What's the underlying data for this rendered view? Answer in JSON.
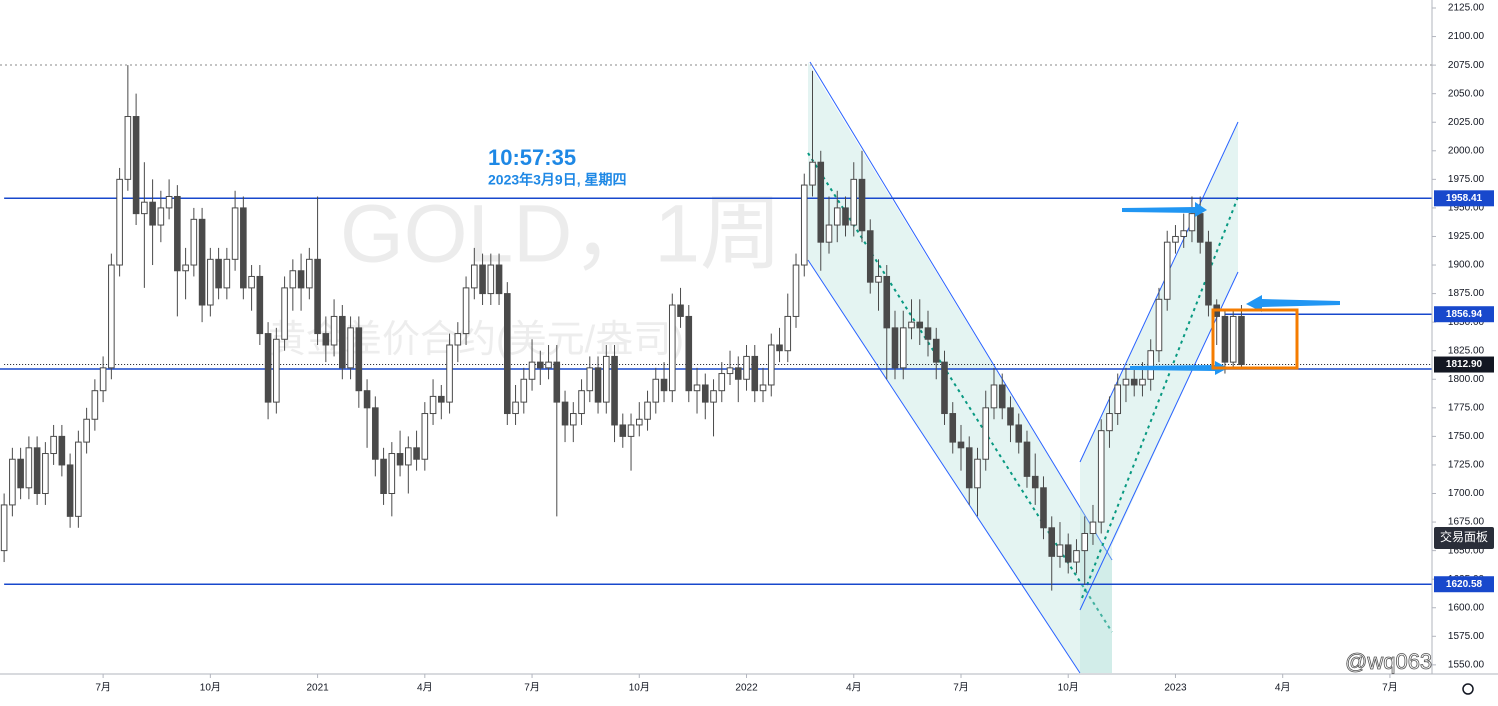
{
  "chart_data": {
    "type": "candlestick",
    "symbol": "GOLD，1周",
    "description": "黄金差价合约(美元/盎司)",
    "clock": "10:57:35",
    "date_line": "2023年3月9日, 星期四",
    "panel_button": "交易面板",
    "watermark": "@wq063",
    "up_color": "#ffffff",
    "down_color": "#4a4a4a",
    "wick_color": "#4a4a4a",
    "open": [
      1650,
      1690,
      1730,
      1705,
      1740,
      1700,
      1735,
      1750,
      1725,
      1680,
      1745,
      1765,
      1790,
      1810,
      1900,
      1975,
      2030,
      1945,
      1955,
      1935,
      1950,
      1960,
      1895,
      1900,
      1940,
      1865,
      1905,
      1880,
      1905,
      1950,
      1880,
      1890,
      1840,
      1780,
      1835,
      1880,
      1895,
      1880,
      1905,
      1840,
      1830,
      1855,
      1810,
      1845,
      1790,
      1775,
      1730,
      1700,
      1735,
      1725,
      1740,
      1730,
      1770,
      1785,
      1780,
      1830,
      1840,
      1880,
      1900,
      1875,
      1900,
      1875,
      1770,
      1780,
      1800,
      1815,
      1810,
      1815,
      1780,
      1760,
      1770,
      1790,
      1810,
      1780,
      1820,
      1760,
      1750,
      1760,
      1765,
      1780,
      1800,
      1790,
      1865,
      1855,
      1790,
      1795,
      1780,
      1790,
      1805,
      1810,
      1800,
      1820,
      1790,
      1795,
      1830,
      1825,
      1855,
      1900,
      1970,
      1990,
      1920,
      1935,
      1950,
      1935,
      1975,
      1930,
      1885,
      1890,
      1845,
      1810,
      1845,
      1850,
      1845,
      1835,
      1815,
      1770,
      1745,
      1740,
      1705,
      1730,
      1775,
      1795,
      1775,
      1760,
      1745,
      1715,
      1705,
      1670,
      1645,
      1655,
      1640,
      1650,
      1665,
      1675,
      1755,
      1770,
      1795,
      1800,
      1795,
      1800,
      1825,
      1870,
      1920,
      1925,
      1930,
      1945,
      1920,
      1865,
      1855,
      1815,
      1855
    ],
    "high": [
      1700,
      1740,
      1740,
      1750,
      1750,
      1745,
      1760,
      1760,
      1735,
      1755,
      1775,
      1800,
      1820,
      1910,
      1985,
      2075,
      2050,
      1990,
      1975,
      1965,
      1975,
      1970,
      1915,
      1950,
      1950,
      1915,
      1915,
      1915,
      1965,
      1960,
      1900,
      1900,
      1850,
      1845,
      1890,
      1905,
      1910,
      1915,
      1960,
      1855,
      1870,
      1865,
      1855,
      1855,
      1800,
      1785,
      1740,
      1745,
      1755,
      1750,
      1755,
      1780,
      1800,
      1795,
      1840,
      1850,
      1890,
      1915,
      1910,
      1910,
      1910,
      1885,
      1795,
      1810,
      1835,
      1825,
      1830,
      1830,
      1790,
      1780,
      1800,
      1820,
      1820,
      1830,
      1830,
      1770,
      1770,
      1780,
      1790,
      1810,
      1815,
      1875,
      1880,
      1865,
      1810,
      1805,
      1800,
      1815,
      1825,
      1820,
      1830,
      1830,
      1810,
      1840,
      1845,
      1875,
      1910,
      1980,
      2070,
      2000,
      1960,
      1965,
      1960,
      1990,
      2000,
      1940,
      1905,
      1900,
      1860,
      1860,
      1870,
      1870,
      1860,
      1845,
      1825,
      1780,
      1760,
      1750,
      1740,
      1790,
      1810,
      1805,
      1785,
      1770,
      1755,
      1735,
      1715,
      1680,
      1675,
      1665,
      1660,
      1680,
      1690,
      1765,
      1785,
      1805,
      1810,
      1810,
      1815,
      1835,
      1880,
      1930,
      1935,
      1945,
      1960,
      1960,
      1930,
      1870,
      1860,
      1860,
      1865
    ],
    "low": [
      1640,
      1680,
      1695,
      1695,
      1690,
      1690,
      1725,
      1715,
      1670,
      1670,
      1735,
      1755,
      1780,
      1800,
      1890,
      1965,
      1935,
      1880,
      1900,
      1920,
      1940,
      1855,
      1870,
      1890,
      1850,
      1855,
      1870,
      1870,
      1895,
      1870,
      1860,
      1830,
      1765,
      1770,
      1825,
      1860,
      1860,
      1870,
      1830,
      1815,
      1820,
      1800,
      1800,
      1775,
      1740,
      1715,
      1690,
      1680,
      1715,
      1700,
      1720,
      1720,
      1760,
      1765,
      1770,
      1815,
      1830,
      1870,
      1865,
      1865,
      1865,
      1760,
      1760,
      1770,
      1790,
      1795,
      1800,
      1680,
      1745,
      1745,
      1760,
      1780,
      1770,
      1770,
      1745,
      1740,
      1720,
      1750,
      1755,
      1770,
      1780,
      1780,
      1845,
      1780,
      1770,
      1765,
      1750,
      1780,
      1795,
      1780,
      1790,
      1780,
      1780,
      1785,
      1815,
      1815,
      1845,
      1890,
      1960,
      1895,
      1910,
      1920,
      1925,
      1925,
      1920,
      1875,
      1860,
      1800,
      1800,
      1800,
      1835,
      1830,
      1820,
      1800,
      1760,
      1735,
      1720,
      1690,
      1680,
      1720,
      1765,
      1765,
      1745,
      1735,
      1705,
      1690,
      1660,
      1615,
      1635,
      1630,
      1630,
      1620,
      1655,
      1665,
      1740,
      1760,
      1780,
      1785,
      1785,
      1790,
      1815,
      1860,
      1910,
      1915,
      1920,
      1910,
      1855,
      1830,
      1805,
      1810,
      1809
    ],
    "close": [
      1690,
      1730,
      1705,
      1740,
      1700,
      1735,
      1750,
      1725,
      1680,
      1745,
      1765,
      1790,
      1810,
      1900,
      1975,
      2030,
      1945,
      1955,
      1935,
      1950,
      1960,
      1895,
      1900,
      1940,
      1865,
      1905,
      1880,
      1905,
      1950,
      1880,
      1890,
      1840,
      1780,
      1835,
      1880,
      1895,
      1880,
      1905,
      1840,
      1830,
      1855,
      1810,
      1845,
      1790,
      1775,
      1730,
      1700,
      1735,
      1725,
      1740,
      1730,
      1770,
      1785,
      1780,
      1830,
      1840,
      1880,
      1900,
      1875,
      1900,
      1875,
      1770,
      1780,
      1800,
      1815,
      1810,
      1815,
      1780,
      1760,
      1770,
      1790,
      1810,
      1780,
      1820,
      1760,
      1750,
      1760,
      1765,
      1780,
      1800,
      1790,
      1865,
      1855,
      1790,
      1795,
      1780,
      1790,
      1805,
      1810,
      1800,
      1820,
      1790,
      1795,
      1830,
      1825,
      1855,
      1900,
      1970,
      1990,
      1920,
      1935,
      1950,
      1935,
      1975,
      1930,
      1885,
      1890,
      1845,
      1810,
      1845,
      1850,
      1845,
      1835,
      1815,
      1770,
      1745,
      1740,
      1705,
      1730,
      1775,
      1795,
      1775,
      1760,
      1745,
      1715,
      1705,
      1670,
      1645,
      1655,
      1640,
      1650,
      1665,
      1675,
      1755,
      1770,
      1795,
      1800,
      1795,
      1800,
      1825,
      1870,
      1920,
      1925,
      1930,
      1945,
      1920,
      1865,
      1855,
      1815,
      1855,
      1812.9
    ],
    "xlim": [
      -0.5,
      173.1
    ],
    "xticks": [
      {
        "value": 12,
        "label": "7月"
      },
      {
        "value": 25,
        "label": "10月"
      },
      {
        "value": 38,
        "label": "2021"
      },
      {
        "value": 51,
        "label": "4月"
      },
      {
        "value": 64,
        "label": "7月"
      },
      {
        "value": 77,
        "label": "10月"
      },
      {
        "value": 90,
        "label": "2022"
      },
      {
        "value": 103,
        "label": "4月"
      },
      {
        "value": 116,
        "label": "7月"
      },
      {
        "value": 129,
        "label": "10月"
      },
      {
        "value": 142,
        "label": "2023"
      },
      {
        "value": 155,
        "label": "4月"
      },
      {
        "value": 168,
        "label": "7月"
      }
    ],
    "ylim": [
      1542,
      2132
    ],
    "yticks": [
      {
        "value": 1550,
        "label": "1550.00"
      },
      {
        "value": 1575,
        "label": "1575.00"
      },
      {
        "value": 1600,
        "label": "1600.00"
      },
      {
        "value": 1625,
        "label": "1625.00"
      },
      {
        "value": 1650,
        "label": "1650.00"
      },
      {
        "value": 1675,
        "label": "1675.00"
      },
      {
        "value": 1700,
        "label": "1700.00"
      },
      {
        "value": 1725,
        "label": "1725.00"
      },
      {
        "value": 1750,
        "label": "1750.00"
      },
      {
        "value": 1775,
        "label": "1775.00"
      },
      {
        "value": 1800,
        "label": "1800.00"
      },
      {
        "value": 1825,
        "label": "1825.00"
      },
      {
        "value": 1850,
        "label": "1850.00"
      },
      {
        "value": 1875,
        "label": "1875.00"
      },
      {
        "value": 1900,
        "label": "1900.00"
      },
      {
        "value": 1925,
        "label": "1925.00"
      },
      {
        "value": 1950,
        "label": "1950.00"
      },
      {
        "value": 1975,
        "label": "1975.00"
      },
      {
        "value": 2000,
        "label": "2000.00"
      },
      {
        "value": 2025,
        "label": "2025.00"
      },
      {
        "value": 2050,
        "label": "2050.00"
      },
      {
        "value": 2075,
        "label": "2075.00"
      },
      {
        "value": 2100,
        "label": "2100.00"
      },
      {
        "value": 2125,
        "label": "2125.00"
      }
    ],
    "price_lines": [
      {
        "value": 1958.41,
        "label": "1958.41",
        "color": "#1848cc",
        "style": "solid",
        "from": 0
      },
      {
        "value": 1856.94,
        "label": "1856.94",
        "color": "#1848cc",
        "style": "solid",
        "from": 148
      },
      {
        "value": 1812.9,
        "label": "1812.90",
        "color": "#131722",
        "style": "dotted",
        "from": 0
      },
      {
        "value": 1620.58,
        "label": "1620.58",
        "color": "#1848cc",
        "style": "solid",
        "from": 0
      }
    ]
  }
}
